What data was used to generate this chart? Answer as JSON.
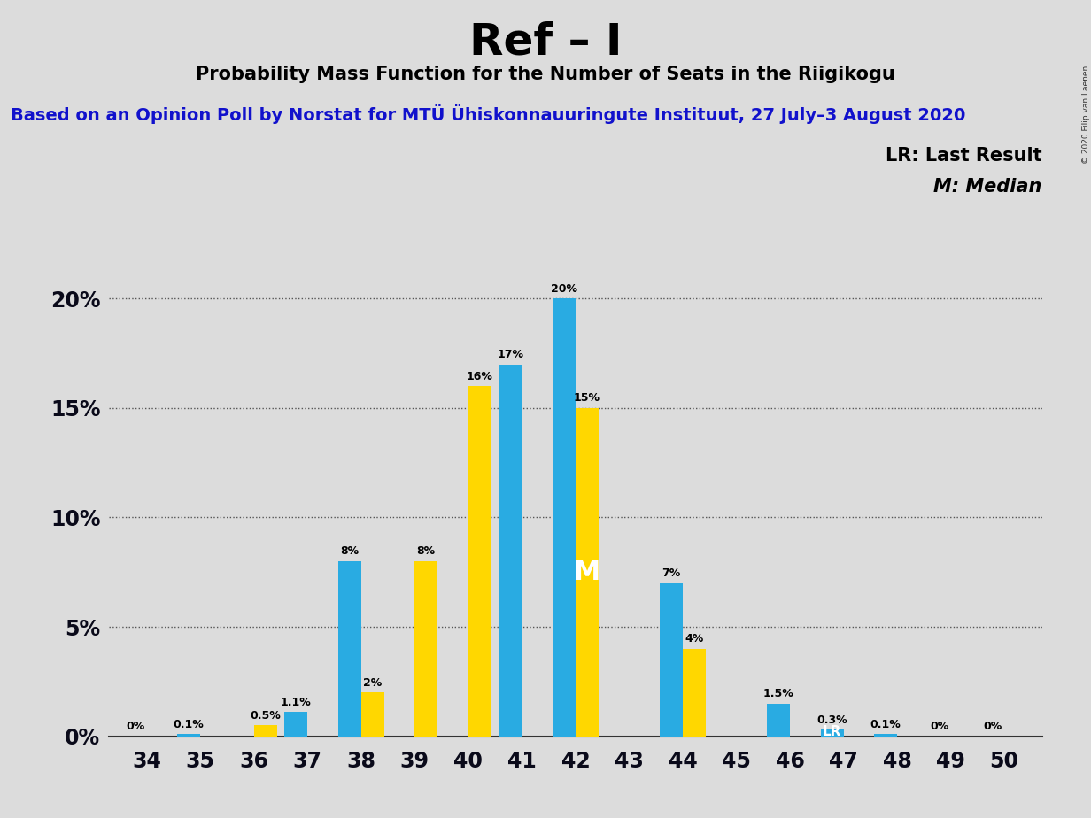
{
  "title": "Ref – I",
  "subtitle": "Probability Mass Function for the Number of Seats in the Riigikogu",
  "subtitle2": "Based on an Opinion Poll by Norstat for MTÜ Ühiskonnauuringute Instituut, 27 July–3 August 2020",
  "copyright": "© 2020 Filip van Laenen",
  "legend1": "LR: Last Result",
  "legend2": "M: Median",
  "seats": [
    34,
    35,
    36,
    37,
    38,
    39,
    40,
    41,
    42,
    43,
    44,
    45,
    46,
    47,
    48,
    49,
    50
  ],
  "blue_values": [
    0.0,
    0.1,
    0.0,
    1.1,
    8.0,
    0.0,
    0.0,
    17.0,
    20.0,
    0.0,
    7.0,
    0.0,
    1.5,
    0.3,
    0.1,
    0.0,
    0.0
  ],
  "yellow_values": [
    0.0,
    0.0,
    0.5,
    0.0,
    2.0,
    8.0,
    16.0,
    0.0,
    15.0,
    0.0,
    4.0,
    0.0,
    0.0,
    0.0,
    0.0,
    0.0,
    0.0
  ],
  "blue_labels": [
    "0%",
    "0.1%",
    "",
    "1.1%",
    "8%",
    "",
    "",
    "17%",
    "20%",
    "",
    "7%",
    "",
    "1.5%",
    "0.3%",
    "0.1%",
    "0%",
    "0%"
  ],
  "yellow_labels": [
    "",
    "",
    "0.5%",
    "",
    "2%",
    "8%",
    "16%",
    "",
    "15%",
    "",
    "4%",
    "",
    "",
    "",
    "",
    "",
    ""
  ],
  "median_seat": 42,
  "lr_seat": 47,
  "blue_color": "#29ABE2",
  "yellow_color": "#FFD700",
  "bg_color": "#DCDCDC",
  "ylim_max": 21.5,
  "yticks": [
    0,
    5,
    10,
    15,
    20
  ],
  "ytick_labels": [
    "0%",
    "5%",
    "10%",
    "15%",
    "20%"
  ]
}
